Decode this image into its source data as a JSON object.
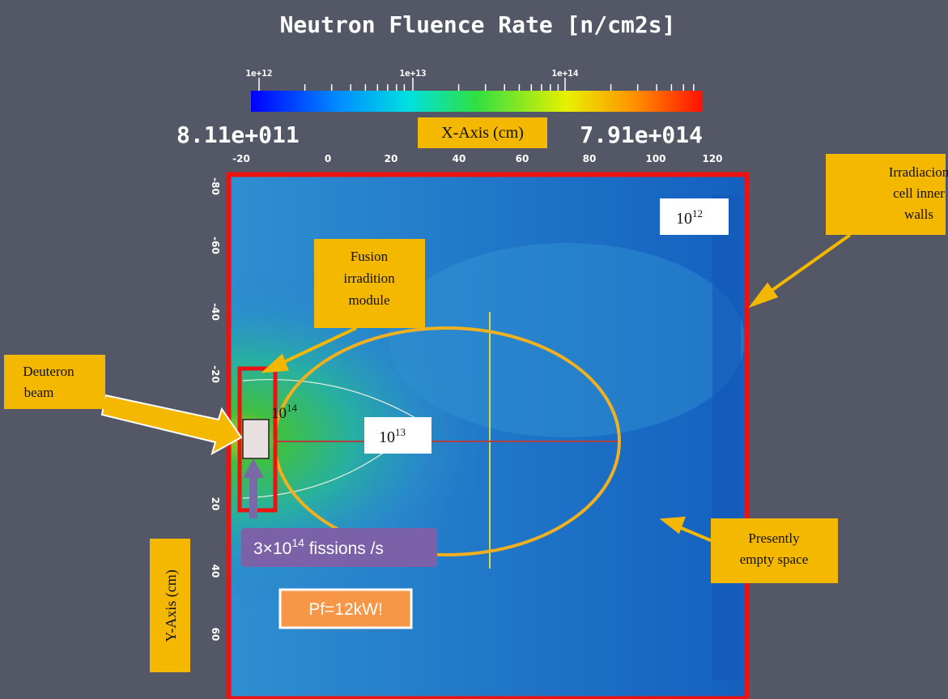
{
  "title": "Neutron Fluence Rate [n/cm2s]",
  "colorbar": {
    "min_label": "8.11e+011",
    "max_label": "7.91e+014",
    "tick_labels": [
      "1e+12",
      "1e+13",
      "1e+14"
    ]
  },
  "x_axis": {
    "label": "X-Axis (cm)",
    "ticks": [
      "-20",
      "0",
      "20",
      "40",
      "60",
      "80",
      "100",
      "120"
    ]
  },
  "y_axis": {
    "label": "Y-Axis (cm)",
    "ticks": [
      "-80",
      "-60",
      "-40",
      "-20",
      "20",
      "40",
      "60"
    ]
  },
  "annotations": {
    "walls": [
      "Irradiacion",
      "cell inner",
      "walls"
    ],
    "module": [
      "Fusion",
      "irradition",
      "module"
    ],
    "beam": [
      "Deuteron",
      "beam"
    ],
    "empty": [
      "Presently",
      "empty space"
    ],
    "level_low": {
      "base": "10",
      "exp": "12"
    },
    "level_mid": {
      "base": "10",
      "exp": "13"
    },
    "level_high": {
      "base": "10",
      "exp": "14"
    },
    "fissions": {
      "base": "3×10",
      "exp": "14",
      "rest": " fissions /s"
    },
    "power": "Pf=12kW!"
  }
}
